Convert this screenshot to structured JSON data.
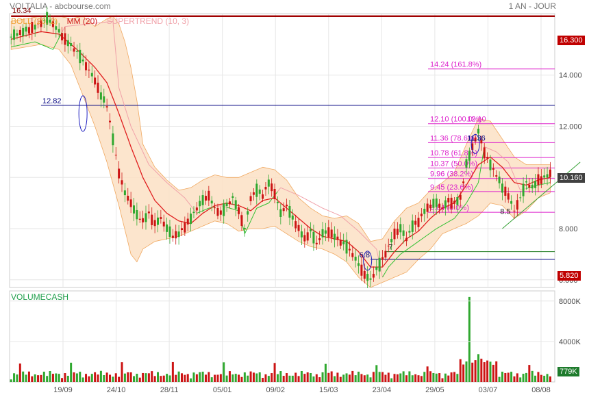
{
  "header": {
    "title": "VOLTALIA - abcbourse.com",
    "period": "1 AN - JOUR",
    "legend": {
      "boll": "BOLL (20, 2)",
      "mm": "MM (20)",
      "supertrend": "SUPERTREND (10, 3)"
    },
    "volume_label": "VOLUMECASH"
  },
  "colors": {
    "price_up": "#2fa82f",
    "price_down": "#cc1414",
    "ma": "#e01e1e",
    "supertrend_up": "#30c030",
    "supertrend_down": "#f0a0a8",
    "bollinger_fill": "#fbe0c4",
    "bollinger_line": "#f0a860",
    "fibo": "#dd22cc",
    "level_line": "#000080",
    "highlight_line": "#a00000"
  },
  "chart_data": {
    "type": "candlestick",
    "x_tick_labels": [
      "19/09",
      "24/10",
      "28/11",
      "05/01",
      "09/02",
      "15/03",
      "23/04",
      "29/05",
      "03/07",
      "08/08"
    ],
    "y_ticks": [
      "6.000",
      "8.000",
      "10.000",
      "12.000",
      "14.000"
    ],
    "ylim": [
      5.7,
      16.4
    ],
    "price_tags": {
      "high_level": "16.300",
      "current": "10.160",
      "low_level": "5.820"
    },
    "close_series": [
      [
        0,
        15.5
      ],
      [
        8,
        15.9
      ],
      [
        12,
        16.2
      ],
      [
        14,
        16.0
      ],
      [
        18,
        15.4
      ],
      [
        22,
        14.9
      ],
      [
        26,
        14.2
      ],
      [
        28,
        13.8
      ],
      [
        30,
        13.2
      ],
      [
        32,
        12.8
      ],
      [
        34,
        11.5
      ],
      [
        36,
        10.2
      ],
      [
        38,
        9.4
      ],
      [
        40,
        9.0
      ],
      [
        42,
        8.5
      ],
      [
        44,
        8.3
      ],
      [
        46,
        8.6
      ],
      [
        48,
        8.2
      ],
      [
        50,
        8.4
      ],
      [
        52,
        8.0
      ],
      [
        54,
        7.7
      ],
      [
        56,
        7.8
      ],
      [
        58,
        8.1
      ],
      [
        60,
        8.4
      ],
      [
        62,
        8.8
      ],
      [
        64,
        9.1
      ],
      [
        66,
        9.3
      ],
      [
        68,
        8.8
      ],
      [
        70,
        8.6
      ],
      [
        72,
        8.9
      ],
      [
        74,
        9.2
      ],
      [
        76,
        8.7
      ],
      [
        78,
        8.0
      ],
      [
        80,
        9.2
      ],
      [
        82,
        9.5
      ],
      [
        84,
        9.3
      ],
      [
        86,
        9.8
      ],
      [
        88,
        9.4
      ],
      [
        90,
        8.6
      ],
      [
        92,
        8.9
      ],
      [
        94,
        8.4
      ],
      [
        96,
        8.0
      ],
      [
        98,
        7.6
      ],
      [
        100,
        7.9
      ],
      [
        102,
        7.4
      ],
      [
        104,
        7.8
      ],
      [
        106,
        7.9
      ],
      [
        108,
        7.7
      ],
      [
        110,
        7.5
      ],
      [
        112,
        7.3
      ],
      [
        114,
        7.0
      ],
      [
        116,
        6.6
      ],
      [
        118,
        6.2
      ],
      [
        120,
        6.0
      ],
      [
        122,
        6.4
      ],
      [
        124,
        6.8
      ],
      [
        126,
        7.3
      ],
      [
        128,
        7.8
      ],
      [
        130,
        8.0
      ],
      [
        132,
        7.6
      ],
      [
        134,
        8.1
      ],
      [
        136,
        8.3
      ],
      [
        138,
        8.7
      ],
      [
        140,
        8.9
      ],
      [
        142,
        9.0
      ],
      [
        144,
        8.8
      ],
      [
        146,
        9.1
      ],
      [
        148,
        9.0
      ],
      [
        150,
        9.2
      ],
      [
        152,
        10.5
      ],
      [
        154,
        11.2
      ],
      [
        156,
        11.8
      ],
      [
        158,
        11.0
      ],
      [
        160,
        10.5
      ],
      [
        162,
        10.1
      ],
      [
        164,
        9.6
      ],
      [
        166,
        9.3
      ],
      [
        168,
        8.7
      ],
      [
        170,
        9.2
      ],
      [
        172,
        9.8
      ],
      [
        174,
        9.6
      ],
      [
        176,
        9.9
      ],
      [
        178,
        10.0
      ],
      [
        180,
        10.16
      ]
    ],
    "ma_series": [
      [
        0,
        15.4
      ],
      [
        10,
        15.7
      ],
      [
        16,
        15.6
      ],
      [
        22,
        15.0
      ],
      [
        28,
        14.3
      ],
      [
        32,
        13.7
      ],
      [
        36,
        12.5
      ],
      [
        40,
        11.2
      ],
      [
        44,
        10.0
      ],
      [
        48,
        9.1
      ],
      [
        52,
        8.6
      ],
      [
        56,
        8.3
      ],
      [
        60,
        8.2
      ],
      [
        64,
        8.6
      ],
      [
        68,
        8.9
      ],
      [
        72,
        9.0
      ],
      [
        76,
        8.9
      ],
      [
        80,
        8.7
      ],
      [
        84,
        9.1
      ],
      [
        88,
        9.2
      ],
      [
        92,
        8.8
      ],
      [
        96,
        8.4
      ],
      [
        100,
        8.0
      ],
      [
        104,
        7.7
      ],
      [
        108,
        7.6
      ],
      [
        112,
        7.5
      ],
      [
        116,
        7.1
      ],
      [
        120,
        6.5
      ],
      [
        124,
        6.5
      ],
      [
        128,
        7.1
      ],
      [
        132,
        7.6
      ],
      [
        136,
        7.9
      ],
      [
        140,
        8.4
      ],
      [
        144,
        8.8
      ],
      [
        148,
        9.0
      ],
      [
        152,
        9.7
      ],
      [
        156,
        10.5
      ],
      [
        160,
        10.8
      ],
      [
        164,
        10.4
      ],
      [
        168,
        9.8
      ],
      [
        172,
        9.7
      ],
      [
        176,
        9.9
      ],
      [
        180,
        10.0
      ]
    ],
    "bollinger_upper": [
      [
        0,
        16.1
      ],
      [
        10,
        16.3
      ],
      [
        16,
        16.3
      ],
      [
        20,
        16.2
      ],
      [
        24,
        16.3
      ],
      [
        28,
        15.9
      ],
      [
        32,
        16.2
      ],
      [
        34,
        16.3
      ],
      [
        36,
        16.0
      ],
      [
        38,
        15.3
      ],
      [
        40,
        14.3
      ],
      [
        42,
        13.0
      ],
      [
        44,
        11.3
      ],
      [
        48,
        10.4
      ],
      [
        52,
        9.9
      ],
      [
        56,
        9.5
      ],
      [
        60,
        9.6
      ],
      [
        64,
        9.9
      ],
      [
        68,
        10.1
      ],
      [
        72,
        10.0
      ],
      [
        76,
        10.0
      ],
      [
        80,
        10.2
      ],
      [
        84,
        10.4
      ],
      [
        88,
        10.3
      ],
      [
        92,
        9.9
      ],
      [
        96,
        9.2
      ],
      [
        100,
        8.8
      ],
      [
        104,
        8.5
      ],
      [
        108,
        8.4
      ],
      [
        112,
        8.5
      ],
      [
        116,
        8.2
      ],
      [
        120,
        7.5
      ],
      [
        124,
        7.6
      ],
      [
        128,
        8.3
      ],
      [
        132,
        8.8
      ],
      [
        136,
        9.0
      ],
      [
        140,
        9.5
      ],
      [
        144,
        9.8
      ],
      [
        148,
        10.2
      ],
      [
        152,
        11.3
      ],
      [
        156,
        12.3
      ],
      [
        160,
        12.2
      ],
      [
        164,
        11.5
      ],
      [
        168,
        10.8
      ],
      [
        172,
        10.5
      ],
      [
        176,
        10.5
      ],
      [
        180,
        10.5
      ]
    ],
    "bollinger_lower": [
      [
        0,
        15.0
      ],
      [
        10,
        15.2
      ],
      [
        16,
        15.0
      ],
      [
        20,
        14.4
      ],
      [
        24,
        13.2
      ],
      [
        28,
        12.0
      ],
      [
        32,
        10.6
      ],
      [
        36,
        8.9
      ],
      [
        40,
        7.0
      ],
      [
        42,
        6.7
      ],
      [
        44,
        7.2
      ],
      [
        48,
        7.5
      ],
      [
        52,
        7.6
      ],
      [
        56,
        7.7
      ],
      [
        60,
        7.9
      ],
      [
        64,
        8.1
      ],
      [
        68,
        8.3
      ],
      [
        72,
        8.2
      ],
      [
        76,
        7.9
      ],
      [
        80,
        8.0
      ],
      [
        84,
        8.0
      ],
      [
        88,
        8.1
      ],
      [
        92,
        7.8
      ],
      [
        96,
        7.5
      ],
      [
        100,
        7.3
      ],
      [
        104,
        7.2
      ],
      [
        108,
        7.0
      ],
      [
        112,
        6.7
      ],
      [
        116,
        6.1
      ],
      [
        120,
        5.7
      ],
      [
        124,
        5.9
      ],
      [
        128,
        6.1
      ],
      [
        132,
        6.3
      ],
      [
        136,
        6.8
      ],
      [
        140,
        7.2
      ],
      [
        144,
        7.8
      ],
      [
        148,
        8.0
      ],
      [
        152,
        8.2
      ],
      [
        156,
        8.5
      ],
      [
        160,
        9.0
      ],
      [
        164,
        8.9
      ],
      [
        168,
        8.4
      ],
      [
        172,
        8.7
      ],
      [
        176,
        9.2
      ],
      [
        180,
        9.4
      ]
    ],
    "supertrend_series": [
      [
        0,
        15.1
      ],
      [
        8,
        15.3
      ],
      [
        14,
        15.0
      ],
      [
        18,
        15.9
      ],
      [
        34,
        16.1
      ],
      [
        36,
        13.5
      ],
      [
        40,
        12.0
      ],
      [
        46,
        10.5
      ],
      [
        52,
        9.8
      ],
      [
        58,
        9.2
      ],
      [
        62,
        8.6
      ],
      [
        66,
        8.8
      ],
      [
        70,
        8.9
      ],
      [
        76,
        8.7
      ],
      [
        78,
        7.8
      ],
      [
        82,
        8.8
      ],
      [
        86,
        9.0
      ],
      [
        90,
        9.6
      ],
      [
        96,
        9.3
      ],
      [
        104,
        8.8
      ],
      [
        110,
        8.5
      ],
      [
        116,
        7.9
      ],
      [
        122,
        7.2
      ],
      [
        124,
        6.1
      ],
      [
        126,
        6.5
      ],
      [
        130,
        7.0
      ],
      [
        136,
        7.5
      ],
      [
        142,
        8.0
      ],
      [
        148,
        8.4
      ],
      [
        152,
        9.0
      ],
      [
        156,
        9.8
      ],
      [
        158,
        11.2
      ],
      [
        162,
        11.0
      ],
      [
        166,
        10.6
      ],
      [
        170,
        9.5
      ],
      [
        176,
        9.7
      ],
      [
        180,
        9.8
      ]
    ],
    "price_labels": [
      {
        "label": "16.34",
        "bar": 6,
        "value": 16.34
      },
      {
        "label": "12.82",
        "bar": 24,
        "value": 12.82
      },
      {
        "label": "6.8",
        "bar": 119,
        "value": 6.8
      },
      {
        "label": "12.10",
        "bar": 155,
        "value": 12.1
      },
      {
        "label": "11.36",
        "bar": 155,
        "value": 11.36
      },
      {
        "label": "8.5",
        "bar": 166,
        "value": 8.5
      }
    ],
    "level_lines": [
      {
        "value": 16.3,
        "from_bar": 0
      },
      {
        "value": 12.82,
        "from_bar": 10
      },
      {
        "value": 7.1,
        "from_bar": 125
      },
      {
        "value": 6.8,
        "from_bar": 120
      }
    ],
    "fibonacci": [
      {
        "label": "14.24  (161.8%)",
        "value": 14.24
      },
      {
        "label": "12.10  (100.0%)",
        "value": 12.1
      },
      {
        "label": "11.36  (78.6%)",
        "value": 11.36
      },
      {
        "label": "10.78  (61.8%)",
        "value": 10.78
      },
      {
        "label": "10.37  (50.0%)",
        "value": 10.37
      },
      {
        "label": "9.96  (38.2%)",
        "value": 9.96
      },
      {
        "label": "9.45  (23.6%)",
        "value": 9.45
      },
      {
        "label": "8.64  (0.0%)",
        "value": 8.64
      }
    ],
    "partial_labels": [
      "7"
    ],
    "trendline": [
      [
        164,
        8.0
      ],
      [
        190,
        10.6
      ]
    ],
    "volume": {
      "ticks": [
        "8000K",
        "4000K"
      ],
      "ymax": 9000,
      "current": "779K",
      "spike_bar": 153,
      "spike_value": 8400
    }
  }
}
